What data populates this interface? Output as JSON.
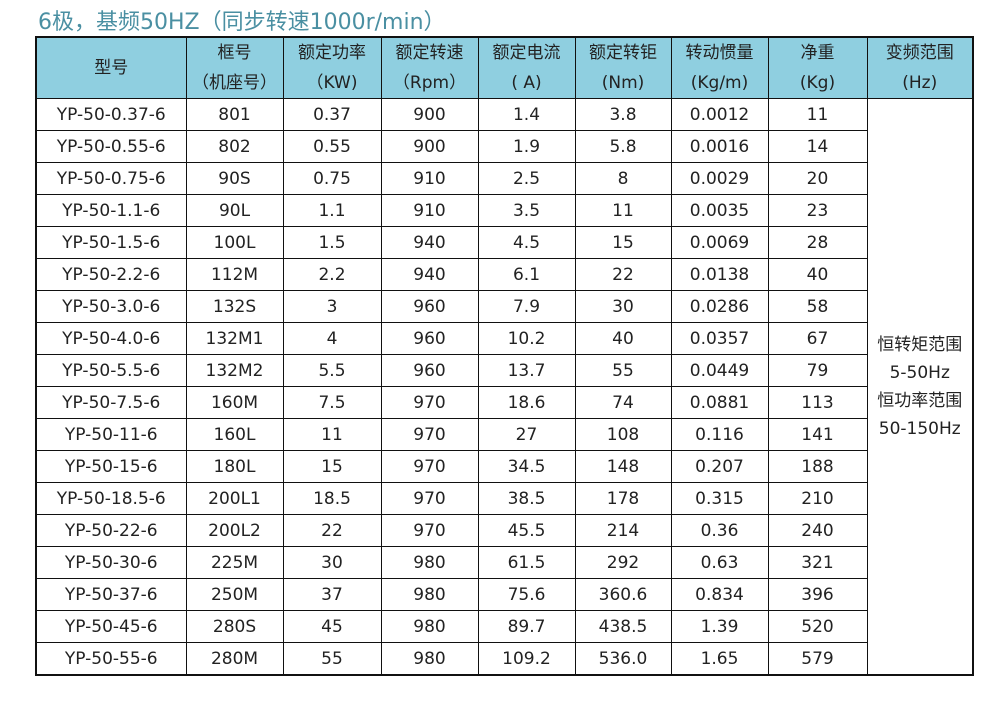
{
  "title": "6极，基频50HZ（同步转速1000r/min）",
  "colors": {
    "header_bg": "#8fcfe0",
    "title": "#4a8fa2"
  },
  "headers": [
    {
      "line1": "型号",
      "line2": ""
    },
    {
      "line1": "框号",
      "line2": "（机座号）"
    },
    {
      "line1": "额定功率",
      "line2": "（KW)"
    },
    {
      "line1": "额定转速",
      "line2": "（Rpm）"
    },
    {
      "line1": "额定电流",
      "line2": "( A)"
    },
    {
      "line1": "额定转钜",
      "line2": "(Nm)"
    },
    {
      "line1": "转动惯量",
      "line2": "(Kg/m)"
    },
    {
      "line1": "净重",
      "line2": "(Kg)"
    },
    {
      "line1": "变频范围",
      "line2": "(Hz)"
    }
  ],
  "freq_range": [
    "恒转矩范围",
    "5-50Hz",
    "恒功率范围",
    "50-150Hz"
  ],
  "rows": [
    [
      "YP-50-0.37-6",
      "801",
      "0.37",
      "900",
      "1.4",
      "3.8",
      "0.0012",
      "11"
    ],
    [
      "YP-50-0.55-6",
      "802",
      "0.55",
      "900",
      "1.9",
      "5.8",
      "0.0016",
      "14"
    ],
    [
      "YP-50-0.75-6",
      "90S",
      "0.75",
      "910",
      "2.5",
      "8",
      "0.0029",
      "20"
    ],
    [
      "YP-50-1.1-6",
      "90L",
      "1.1",
      "910",
      "3.5",
      "11",
      "0.0035",
      "23"
    ],
    [
      "YP-50-1.5-6",
      "100L",
      "1.5",
      "940",
      "4.5",
      "15",
      "0.0069",
      "28"
    ],
    [
      "YP-50-2.2-6",
      "112M",
      "2.2",
      "940",
      "6.1",
      "22",
      "0.0138",
      "40"
    ],
    [
      "YP-50-3.0-6",
      "132S",
      "3",
      "960",
      "7.9",
      "30",
      "0.0286",
      "58"
    ],
    [
      "YP-50-4.0-6",
      "132M1",
      "4",
      "960",
      "10.2",
      "40",
      "0.0357",
      "67"
    ],
    [
      "YP-50-5.5-6",
      "132M2",
      "5.5",
      "960",
      "13.7",
      "55",
      "0.0449",
      "79"
    ],
    [
      "YP-50-7.5-6",
      "160M",
      "7.5",
      "970",
      "18.6",
      "74",
      "0.0881",
      "113"
    ],
    [
      "YP-50-11-6",
      "160L",
      "11",
      "970",
      "27",
      "108",
      "0.116",
      "141"
    ],
    [
      "YP-50-15-6",
      "180L",
      "15",
      "970",
      "34.5",
      "148",
      "0.207",
      "188"
    ],
    [
      "YP-50-18.5-6",
      "200L1",
      "18.5",
      "970",
      "38.5",
      "178",
      "0.315",
      "210"
    ],
    [
      "YP-50-22-6",
      "200L2",
      "22",
      "970",
      "45.5",
      "214",
      "0.36",
      "240"
    ],
    [
      "YP-50-30-6",
      "225M",
      "30",
      "980",
      "61.5",
      "292",
      "0.63",
      "321"
    ],
    [
      "YP-50-37-6",
      "250M",
      "37",
      "980",
      "75.6",
      "360.6",
      "0.834",
      "396"
    ],
    [
      "YP-50-45-6",
      "280S",
      "45",
      "980",
      "89.7",
      "438.5",
      "1.39",
      "520"
    ],
    [
      "YP-50-55-6",
      "280M",
      "55",
      "980",
      "109.2",
      "536.0",
      "1.65",
      "579"
    ]
  ]
}
